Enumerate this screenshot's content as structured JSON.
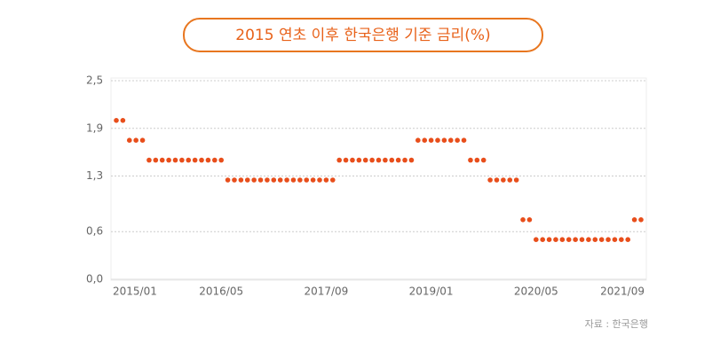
{
  "chart_data": {
    "type": "scatter",
    "title": "2015 연초 이후 한국은행 기준 금리(%)",
    "source": "자료 : 한국은행",
    "categories": [
      "2015/01",
      null,
      null,
      null,
      null,
      null,
      null,
      null,
      null,
      null,
      null,
      null,
      null,
      null,
      null,
      null,
      "2016/05",
      null,
      null,
      null,
      null,
      null,
      null,
      null,
      null,
      null,
      null,
      null,
      null,
      null,
      null,
      null,
      "2017/09",
      null,
      null,
      null,
      null,
      null,
      null,
      null,
      null,
      null,
      null,
      null,
      null,
      null,
      null,
      null,
      "2019/01",
      null,
      null,
      null,
      null,
      null,
      null,
      null,
      null,
      null,
      null,
      null,
      null,
      null,
      null,
      null,
      "2020/05",
      null,
      null,
      null,
      null,
      null,
      null,
      null,
      null,
      null,
      null,
      null,
      null,
      null,
      null,
      null,
      "2021/09"
    ],
    "values": [
      2.0,
      2.0,
      1.75,
      1.75,
      1.75,
      1.5,
      1.5,
      1.5,
      1.5,
      1.5,
      1.5,
      1.5,
      1.5,
      1.5,
      1.5,
      1.5,
      1.5,
      1.25,
      1.25,
      1.25,
      1.25,
      1.25,
      1.25,
      1.25,
      1.25,
      1.25,
      1.25,
      1.25,
      1.25,
      1.25,
      1.25,
      1.25,
      1.25,
      1.25,
      1.5,
      1.5,
      1.5,
      1.5,
      1.5,
      1.5,
      1.5,
      1.5,
      1.5,
      1.5,
      1.5,
      1.5,
      1.75,
      1.75,
      1.75,
      1.75,
      1.75,
      1.75,
      1.75,
      1.75,
      1.5,
      1.5,
      1.5,
      1.25,
      1.25,
      1.25,
      1.25,
      1.25,
      0.75,
      0.75,
      0.5,
      0.5,
      0.5,
      0.5,
      0.5,
      0.5,
      0.5,
      0.5,
      0.5,
      0.5,
      0.5,
      0.5,
      0.5,
      0.5,
      0.5,
      0.75,
      0.75
    ],
    "color": "#e84e1b",
    "ylim": [
      0,
      2.5
    ],
    "yticks": [
      {
        "value": 0,
        "label": "0,0"
      },
      {
        "value": 0.6,
        "label": "0,6"
      },
      {
        "value": 1.3,
        "label": "1,3"
      },
      {
        "value": 1.9,
        "label": "1,9"
      },
      {
        "value": 2.5,
        "label": "2,5"
      }
    ],
    "grid": true
  }
}
